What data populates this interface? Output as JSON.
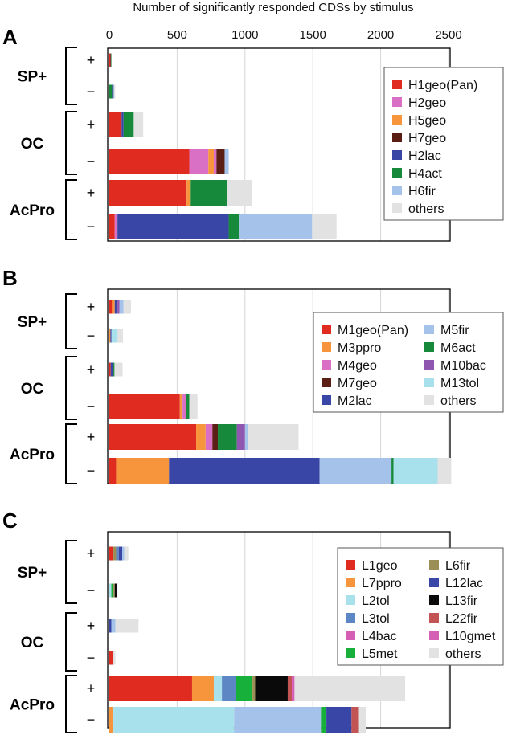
{
  "figure_title": "Number of significantly responded CDSs by stimulus",
  "colors": {
    "red": "#df2b20",
    "pink": "#d970c6",
    "orange": "#f7953c",
    "darkbrown": "#5b1e14",
    "navy": "#3a46a6",
    "green": "#17893a",
    "lightblue": "#a5c3ea",
    "gray": "#e2e2e2",
    "purple": "#9057b0",
    "cyan": "#a8e0ec",
    "steelblue": "#5d86c4",
    "olive": "#9c8f55",
    "black": "#0a0a0a",
    "rust": "#c35454",
    "magenta": "#d65fb6",
    "brightgreen": "#17b03a",
    "dot": "#f2e21a"
  },
  "chart_data": {
    "type": "bar",
    "stacked": true,
    "orientation": "horizontal",
    "xlim": [
      0,
      2500
    ],
    "xticks": [
      0,
      500,
      1000,
      1500,
      2000,
      2500
    ],
    "xlabel": "Number of significantly responded CDSs by stimulus",
    "grid": true,
    "group_labels": [
      "SP+",
      "OC",
      "AcPro"
    ],
    "direction_labels": [
      "+",
      "−"
    ],
    "panels": [
      {
        "label": "A",
        "legend": [
          {
            "name": "H1geo(Pan)",
            "color": "red"
          },
          {
            "name": "H2geo",
            "color": "pink"
          },
          {
            "name": "H5geo",
            "color": "orange"
          },
          {
            "name": "H7geo",
            "color": "darkbrown"
          },
          {
            "name": "H2lac",
            "color": "navy"
          },
          {
            "name": "H4act",
            "color": "green"
          },
          {
            "name": "H6fir",
            "color": "lightblue"
          },
          {
            "name": "others",
            "color": "gray"
          }
        ],
        "rows": [
          {
            "group": "SP+",
            "dir": "+",
            "segments": [
              [
                "red",
                8
              ],
              [
                "darkbrown",
                4
              ],
              [
                "green",
                3
              ],
              [
                "gray",
                2
              ]
            ]
          },
          {
            "group": "SP+",
            "dir": "−",
            "segments": [
              [
                "green",
                20
              ],
              [
                "navy",
                8
              ],
              [
                "steelblue",
                5
              ],
              [
                "gray",
                10
              ]
            ]
          },
          {
            "group": "OC",
            "dir": "+",
            "segments": [
              [
                "red",
                90
              ],
              [
                "navy",
                15
              ],
              [
                "green",
                75
              ],
              [
                "gray",
                70
              ]
            ]
          },
          {
            "group": "OC",
            "dir": "−",
            "segments": [
              [
                "red",
                590
              ],
              [
                "pink",
                140
              ],
              [
                "orange",
                40
              ],
              [
                "pink",
                20
              ],
              [
                "darkbrown",
                60
              ],
              [
                "lightblue",
                30
              ]
            ]
          },
          {
            "group": "AcPro",
            "dir": "+",
            "segments": [
              [
                "red",
                570
              ],
              [
                "orange",
                30
              ],
              [
                "green",
                270
              ],
              [
                "gray",
                180
              ]
            ]
          },
          {
            "group": "AcPro",
            "dir": "−",
            "segments": [
              [
                "red",
                40
              ],
              [
                "pink",
                20
              ],
              [
                "navy",
                820
              ],
              [
                "green",
                75
              ],
              [
                "lightblue",
                540
              ],
              [
                "gray",
                180
              ]
            ]
          }
        ]
      },
      {
        "label": "B",
        "legend": [
          {
            "name": "M1geo(Pan)",
            "color": "red"
          },
          {
            "name": "M3ppro",
            "color": "orange"
          },
          {
            "name": "M4geo",
            "color": "pink"
          },
          {
            "name": "M7geo",
            "color": "darkbrown"
          },
          {
            "name": "M2lac",
            "color": "navy"
          },
          {
            "name": "M5fir",
            "color": "lightblue"
          },
          {
            "name": "M6act",
            "color": "green"
          },
          {
            "name": "M10bac",
            "color": "purple"
          },
          {
            "name": "M13tol",
            "color": "cyan"
          },
          {
            "name": "others",
            "color": "gray"
          }
        ],
        "rows": [
          {
            "group": "SP+",
            "dir": "+",
            "segments": [
              [
                "red",
                20
              ],
              [
                "orange",
                20
              ],
              [
                "navy",
                20
              ],
              [
                "purple",
                15
              ],
              [
                "lightblue",
                30
              ],
              [
                "gray",
                55
              ]
            ]
          },
          {
            "group": "SP+",
            "dir": "−",
            "segments": [
              [
                "orange",
                8
              ],
              [
                "navy",
                8
              ],
              [
                "cyan",
                45
              ],
              [
                "gray",
                40
              ]
            ]
          },
          {
            "group": "OC",
            "dir": "+",
            "segments": [
              [
                "red",
                10
              ],
              [
                "navy",
                20
              ],
              [
                "green",
                8
              ],
              [
                "gray",
                60
              ]
            ]
          },
          {
            "group": "OC",
            "dir": "−",
            "segments": [
              [
                "red",
                520
              ],
              [
                "orange",
                20
              ],
              [
                "pink",
                25
              ],
              [
                "green",
                25
              ],
              [
                "gray",
                60
              ]
            ]
          },
          {
            "group": "AcPro",
            "dir": "+",
            "segments": [
              [
                "red",
                640
              ],
              [
                "orange",
                70
              ],
              [
                "pink",
                50
              ],
              [
                "darkbrown",
                40
              ],
              [
                "green",
                140
              ],
              [
                "purple",
                60
              ],
              [
                "lightblue",
                20
              ],
              [
                "gray",
                375
              ]
            ]
          },
          {
            "group": "AcPro",
            "dir": "−",
            "segments": [
              [
                "red",
                50
              ],
              [
                "orange",
                390
              ],
              [
                "navy",
                1110
              ],
              [
                "lightblue",
                530
              ],
              [
                "green",
                15
              ],
              [
                "cyan",
                325
              ],
              [
                "gray",
                100
              ]
            ]
          }
        ]
      },
      {
        "label": "C",
        "legend": [
          {
            "name": "L1geo",
            "color": "red"
          },
          {
            "name": "L7ppro",
            "color": "orange"
          },
          {
            "name": "L2tol",
            "color": "cyan"
          },
          {
            "name": "L3tol",
            "color": "steelblue"
          },
          {
            "name": "L4bac",
            "color": "magenta"
          },
          {
            "name": "L5met",
            "color": "brightgreen"
          },
          {
            "name": "L6fir",
            "color": "olive"
          },
          {
            "name": "L12lac",
            "color": "navy"
          },
          {
            "name": "L13fir",
            "color": "black"
          },
          {
            "name": "L22fir",
            "color": "rust"
          },
          {
            "name": "L10gmet",
            "color": "magenta"
          },
          {
            "name": "others",
            "color": "gray"
          }
        ],
        "rows": [
          {
            "group": "SP+",
            "dir": "+",
            "segments": [
              [
                "red",
                30
              ],
              [
                "olive",
                20
              ],
              [
                "steelblue",
                20
              ],
              [
                "navy",
                25
              ],
              [
                "lightblue",
                15
              ],
              [
                "gray",
                30
              ]
            ]
          },
          {
            "group": "SP+",
            "dir": "−",
            "segments": [
              [
                "cyan",
                15
              ],
              [
                "brightgreen",
                15
              ],
              [
                "olive",
                10
              ],
              [
                "black",
                15
              ],
              [
                "gray",
                5
              ]
            ]
          },
          {
            "group": "OC",
            "dir": "+",
            "segments": [
              [
                "navy",
                15
              ],
              [
                "lightblue",
                30
              ],
              [
                "gray",
                170
              ]
            ]
          },
          {
            "group": "OC",
            "dir": "−",
            "segments": [
              [
                "red",
                25
              ],
              [
                "gray",
                20
              ]
            ]
          },
          {
            "group": "AcPro",
            "dir": "+",
            "segments": [
              [
                "red",
                610
              ],
              [
                "orange",
                160
              ],
              [
                "cyan",
                60
              ],
              [
                "steelblue",
                100
              ],
              [
                "brightgreen",
                125
              ],
              [
                "olive",
                20
              ],
              [
                "black",
                240
              ],
              [
                "rust",
                30
              ],
              [
                "magenta",
                20
              ],
              [
                "gray",
                815
              ]
            ]
          },
          {
            "group": "AcPro",
            "dir": "−",
            "segments": [
              [
                "orange",
                30
              ],
              [
                "cyan",
                890
              ],
              [
                "lightblue",
                640
              ],
              [
                "brightgreen",
                40
              ],
              [
                "navy",
                185
              ],
              [
                "rust",
                55
              ],
              [
                "gray",
                50
              ]
            ]
          }
        ]
      }
    ]
  }
}
